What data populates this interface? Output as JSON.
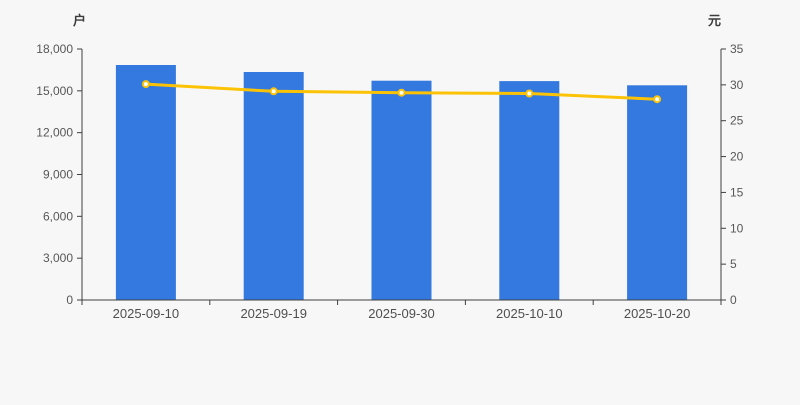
{
  "page": {
    "background": "#f7f7f8"
  },
  "chart_data": {
    "type": "bar",
    "subtype": "bar-and-line-dual-axis",
    "categories": [
      "2025-09-10",
      "2025-09-19",
      "2025-09-30",
      "2025-10-10",
      "2025-10-20"
    ],
    "series": [
      {
        "id": "bar-series",
        "type": "bar",
        "axis": "left",
        "color": "#3379e0",
        "values": [
          16850,
          16350,
          15730,
          15700,
          15400
        ]
      },
      {
        "id": "line-series",
        "type": "line",
        "axis": "right",
        "color": "#fcc306",
        "marker_fill": "#ffffff",
        "values": [
          30.1,
          29.1,
          28.9,
          28.8,
          28.0
        ]
      }
    ],
    "left_axis": {
      "label": "户",
      "min": 0,
      "max": 18000,
      "step": 3000,
      "tick_labels": [
        "0",
        "3,000",
        "6,000",
        "9,000",
        "12,000",
        "15,000",
        "18,000"
      ]
    },
    "right_axis": {
      "label": "元",
      "min": 0,
      "max": 35,
      "step": 5,
      "tick_labels": [
        "0",
        "5",
        "10",
        "15",
        "20",
        "25",
        "30",
        "35"
      ]
    },
    "grid": false,
    "legend": null,
    "axis_color": "#3f3f3f"
  }
}
